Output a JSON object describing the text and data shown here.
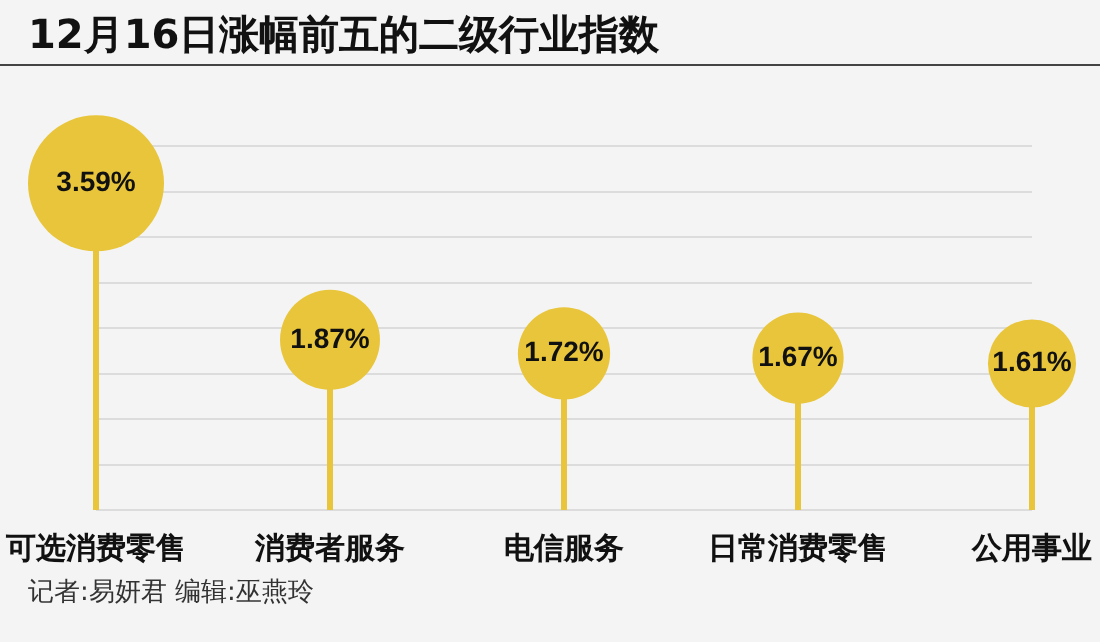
{
  "chart_data": {
    "type": "lollipop",
    "title": "12月16日涨幅前五的二级行业指数",
    "categories": [
      "可选消费零售",
      "消费者服务",
      "电信服务",
      "日常消费零售",
      "公用事业"
    ],
    "values": [
      3.59,
      1.87,
      1.72,
      1.67,
      1.61
    ],
    "sizes": [
      1,
      0.54,
      0.46,
      0.45,
      0.42
    ],
    "value_labels": [
      "3.59%",
      "1.87%",
      "1.72%",
      "1.67%",
      "1.61%"
    ],
    "color": "#e8c53a",
    "grid": "y",
    "legend": false,
    "tick_labels": "x",
    "annotations": [
      "记者:易妍君   编辑:巫燕玲"
    ]
  }
}
